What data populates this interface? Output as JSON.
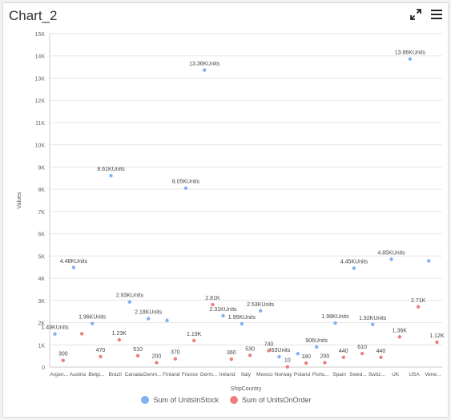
{
  "header": {
    "title": "Chart_2",
    "expand_icon": "expand-icon",
    "menu_icon": "hamburger-menu-icon"
  },
  "chart_data": {
    "type": "scatter",
    "xlabel": "ShipCountry",
    "ylabel": "Values",
    "ylim": [
      0,
      15000
    ],
    "yticks": [
      0,
      1000,
      2000,
      3000,
      4000,
      5000,
      6000,
      7000,
      8000,
      9000,
      10000,
      11000,
      12000,
      13000,
      14000,
      15000
    ],
    "yticklabels": [
      "0",
      "1K",
      "2K",
      "3K",
      "4K",
      "5K",
      "6K",
      "7K",
      "8K",
      "9K",
      "10K",
      "11K",
      "12K",
      "13K",
      "14K",
      "15K"
    ],
    "grid": true,
    "legend_position": "bottom",
    "categories": [
      "Argen...",
      "Austria",
      "Belgi...",
      "Brazil",
      "Canada",
      "Denm...",
      "Finland",
      "France",
      "Germ...",
      "Ireland",
      "Italy",
      "Mexico",
      "Norway",
      "Poland",
      "Portu...",
      "Spain",
      "Swed...",
      "Switz...",
      "UK",
      "USA",
      "Vene..."
    ],
    "series": [
      {
        "name": "Sum of UnitsInStock",
        "color": "#7eb3f3",
        "values": [
          1490,
          4480,
          1960,
          8610,
          2930,
          2180,
          2100,
          8050,
          13360,
          2310,
          1950,
          2530,
          463,
          600,
          906,
          1980,
          4450,
          1920,
          4850,
          13860,
          4780
        ],
        "labels": [
          "1.49KUnits",
          "4.48KUnits",
          "1.96KUnits",
          "8.61KUnits",
          "2.93KUnits",
          "2.18KUnits",
          "",
          "8.05KUnits",
          "13.36KUnits",
          "2.31KUnits",
          "1.95KUnits",
          "2.53KUnits",
          "463Units",
          "",
          "906Units",
          "1.98KUnits",
          "4.45KUnits",
          "1.92KUnits",
          "4.85KUnits",
          "13.86KUnits",
          ""
        ]
      },
      {
        "name": "Sum of UnitsOnOrder",
        "color": "#ee7f7f",
        "values": [
          300,
          1500,
          470,
          1230,
          510,
          200,
          370,
          1190,
          2810,
          360,
          530,
          740,
          10,
          180,
          200,
          440,
          610,
          440,
          1360,
          2710,
          1120
        ],
        "labels": [
          "300",
          "",
          "470",
          "1.23K",
          "510",
          "200",
          "370",
          "1.19K",
          "2.81K",
          "360",
          "530",
          "740",
          "10",
          "180",
          "200",
          "440",
          "610",
          "440",
          "1.36K",
          "2.71K",
          "1.12K"
        ]
      }
    ]
  }
}
